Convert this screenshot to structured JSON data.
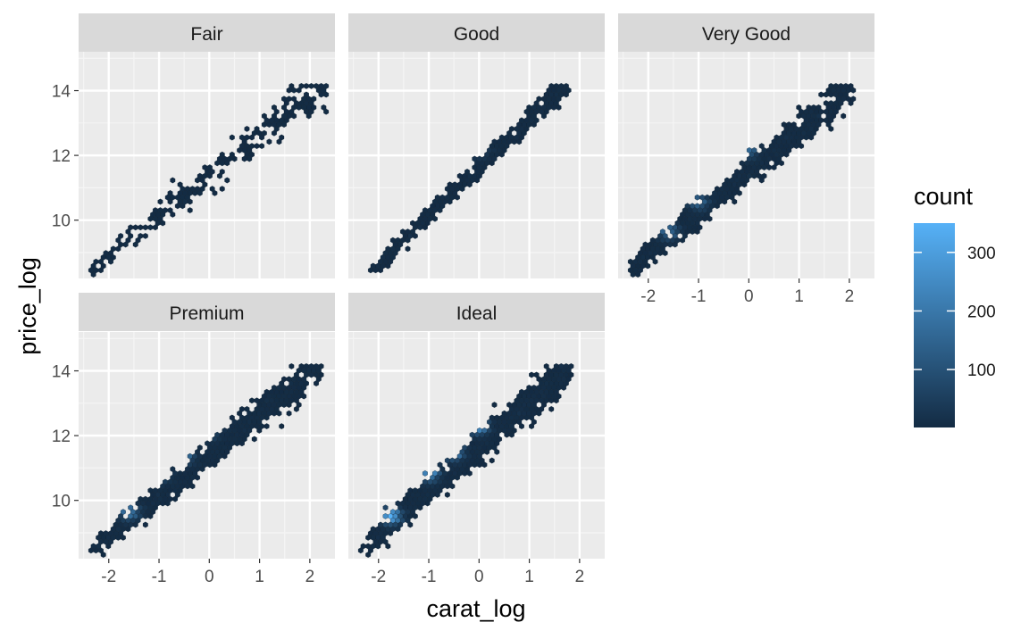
{
  "chart_data": {
    "type": "heatmap",
    "subtype": "hexbin-facets",
    "title": "",
    "xlabel": "carat_log",
    "ylabel": "price_log",
    "xlim": [
      -2.6,
      2.5
    ],
    "ylim": [
      8.2,
      15.2
    ],
    "x_ticks": [
      -2,
      -1,
      0,
      1,
      2
    ],
    "x_tick_labels": [
      "-2",
      "-1",
      "0",
      "1",
      "2"
    ],
    "y_ticks": [
      10,
      12,
      14
    ],
    "y_tick_labels": [
      "10",
      "12",
      "14"
    ],
    "grid": true,
    "legend": {
      "title": "count",
      "placement": "right",
      "range": [
        1,
        350
      ],
      "ticks": [
        100,
        200,
        300
      ],
      "tick_labels": [
        "100",
        "200",
        "300"
      ],
      "color_low": "#132B43",
      "color_high": "#56B1F7"
    },
    "facets": [
      {
        "label": "Fair",
        "band": {
          "x_start": -2.35,
          "y_start": 8.5,
          "x_end": 2.3,
          "y_end": 14.2,
          "width_start": 0.3,
          "width_end": 1.0
        },
        "points": 260,
        "peak_count": 40,
        "hotspots": []
      },
      {
        "label": "Good",
        "band": {
          "x_start": -2.15,
          "y_start": 8.4,
          "x_end": 1.7,
          "y_end": 14.15,
          "width_start": 0.25,
          "width_end": 0.55
        },
        "points": 480,
        "peak_count": 90,
        "hotspots": [
          [
            0.0,
            12.2
          ]
        ]
      },
      {
        "label": "Very Good",
        "band": {
          "x_start": -2.3,
          "y_start": 8.55,
          "x_end": 2.05,
          "y_end": 14.1,
          "width_start": 0.45,
          "width_end": 0.75
        },
        "points": 800,
        "peak_count": 180,
        "hotspots": [
          [
            -1.6,
            9.6
          ],
          [
            -1.0,
            10.6
          ],
          [
            0.0,
            12.2
          ]
        ]
      },
      {
        "label": "Premium",
        "band": {
          "x_start": -2.3,
          "y_start": 8.5,
          "x_end": 2.2,
          "y_end": 14.2,
          "width_start": 0.45,
          "width_end": 0.8
        },
        "points": 850,
        "peak_count": 220,
        "hotspots": [
          [
            -1.6,
            9.7
          ],
          [
            -1.0,
            10.8
          ],
          [
            -0.5,
            11.4
          ],
          [
            0.0,
            12.2
          ]
        ]
      },
      {
        "label": "Ideal",
        "band": {
          "x_start": -2.3,
          "y_start": 8.5,
          "x_end": 1.8,
          "y_end": 14.1,
          "width_start": 0.5,
          "width_end": 0.85
        },
        "points": 950,
        "peak_count": 350,
        "hotspots": [
          [
            -1.75,
            9.5
          ],
          [
            -1.0,
            10.8
          ],
          [
            -0.5,
            11.5
          ],
          [
            0.0,
            12.3
          ]
        ]
      }
    ]
  }
}
